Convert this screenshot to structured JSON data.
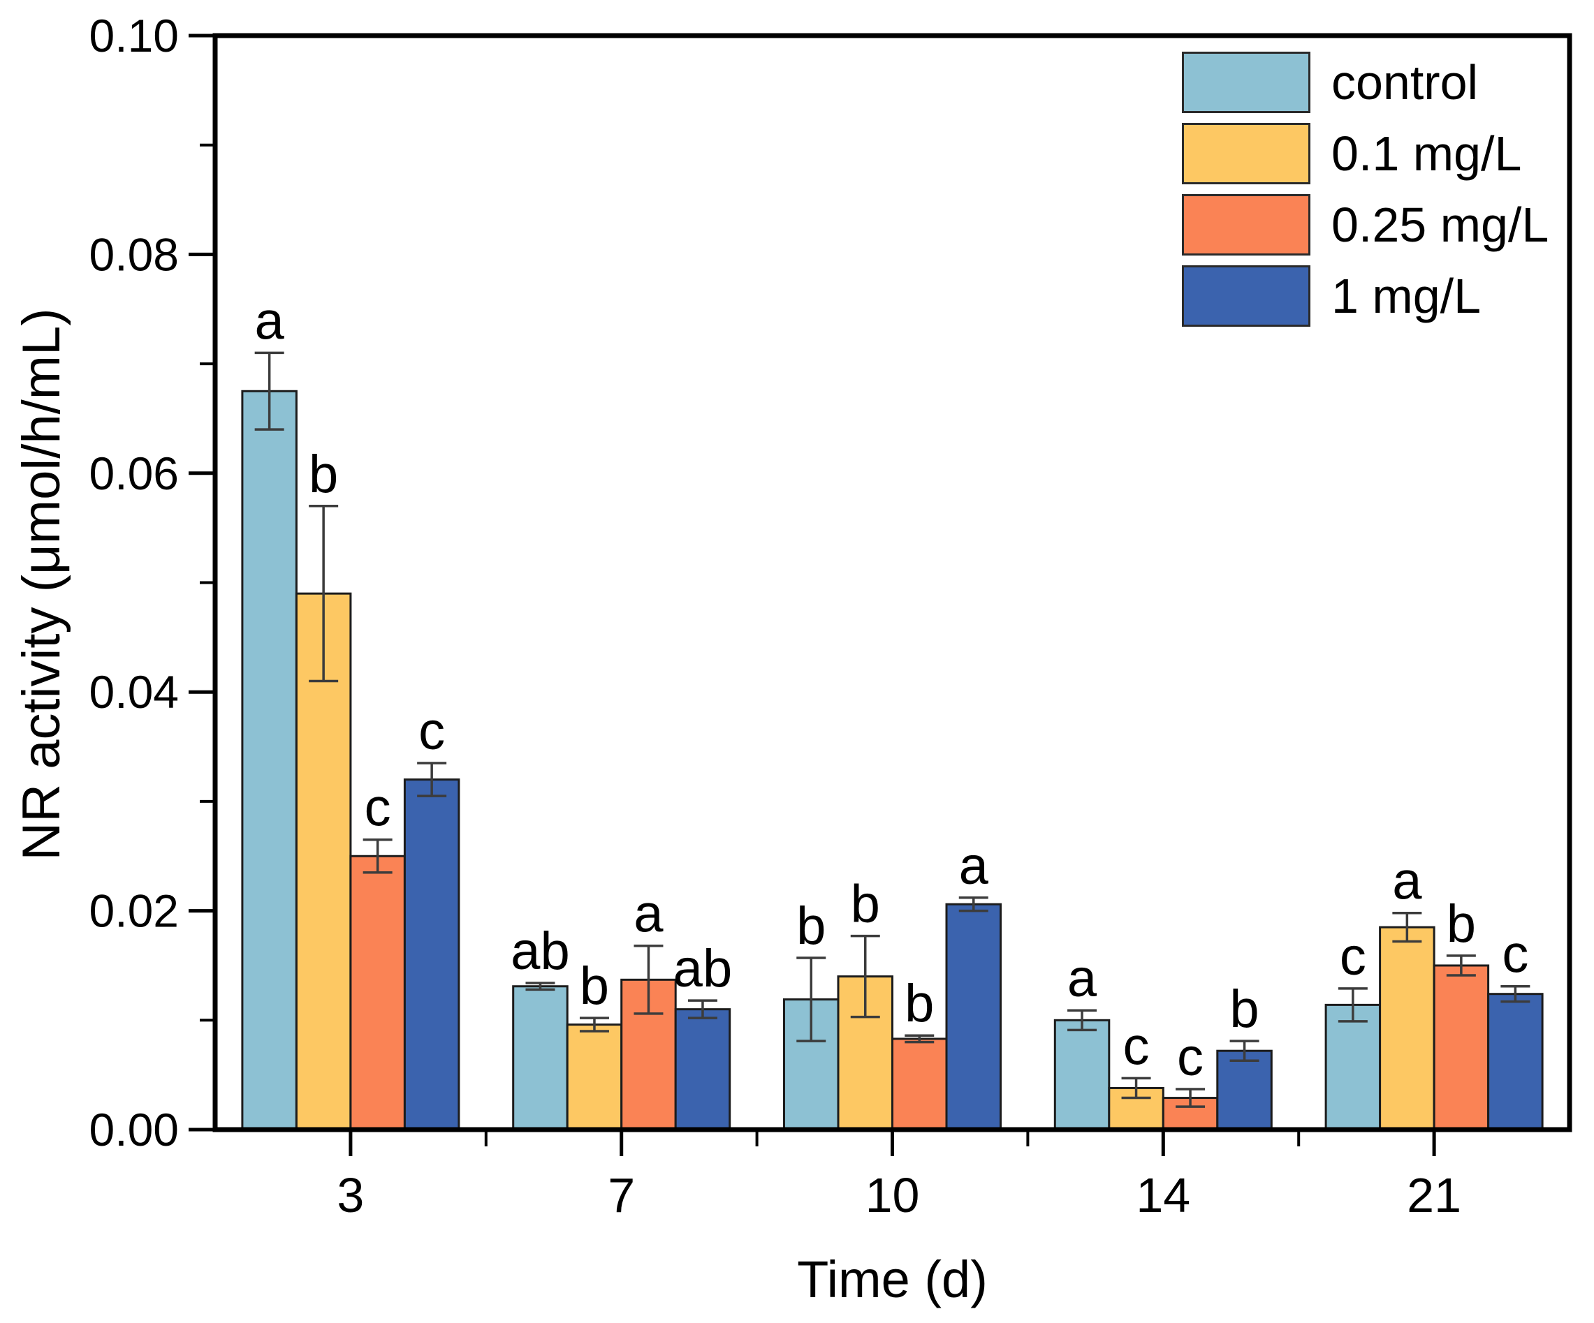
{
  "figure": {
    "background_color": "#ffffff",
    "frame_color": "#000000",
    "error_bar_color": "#3c3c3c",
    "bar_border_color": "#1c1c1c"
  },
  "chart_data": {
    "type": "bar",
    "title": "",
    "xlabel": "Time (d)",
    "ylabel": "NR activity (μmol/h/mL)",
    "categories": [
      "3",
      "7",
      "10",
      "14",
      "21"
    ],
    "ylim": [
      0,
      0.1
    ],
    "y_tick_values": [
      0.0,
      0.02,
      0.04,
      0.06,
      0.08,
      0.1
    ],
    "y_tick_labels": [
      "0.00",
      "0.02",
      "0.04",
      "0.06",
      "0.08",
      "0.10"
    ],
    "y_minor_tick_values": [
      0.01,
      0.03,
      0.05,
      0.07,
      0.09
    ],
    "grid": false,
    "legend_position": "top-right-inside",
    "series": [
      {
        "name": "control",
        "color": "#8dc1d3",
        "values": [
          0.0675,
          0.0131,
          0.0119,
          0.01,
          0.0114
        ],
        "errors": [
          0.0035,
          0.0003,
          0.0038,
          0.0009,
          0.0015
        ],
        "letters": [
          "a",
          "ab",
          "b",
          "a",
          "c"
        ]
      },
      {
        "name": "0.1 mg/L",
        "color": "#fdc863",
        "values": [
          0.049,
          0.0096,
          0.014,
          0.0038,
          0.0185
        ],
        "errors": [
          0.008,
          0.0006,
          0.0037,
          0.0009,
          0.0013
        ],
        "letters": [
          "b",
          "b",
          "b",
          "c",
          "a"
        ]
      },
      {
        "name": "0.25 mg/L",
        "color": "#fa8355",
        "values": [
          0.025,
          0.0137,
          0.0083,
          0.0029,
          0.015
        ],
        "errors": [
          0.0015,
          0.0031,
          0.0003,
          0.0008,
          0.0009
        ],
        "letters": [
          "c",
          "a",
          "b",
          "c",
          "b"
        ]
      },
      {
        "name": "1 mg/L",
        "color": "#3b63ae",
        "values": [
          0.032,
          0.011,
          0.0206,
          0.0072,
          0.0124
        ],
        "errors": [
          0.0015,
          0.0008,
          0.0006,
          0.0009,
          0.0007
        ],
        "letters": [
          "c",
          "ab",
          "a",
          "b",
          "c"
        ]
      }
    ]
  }
}
